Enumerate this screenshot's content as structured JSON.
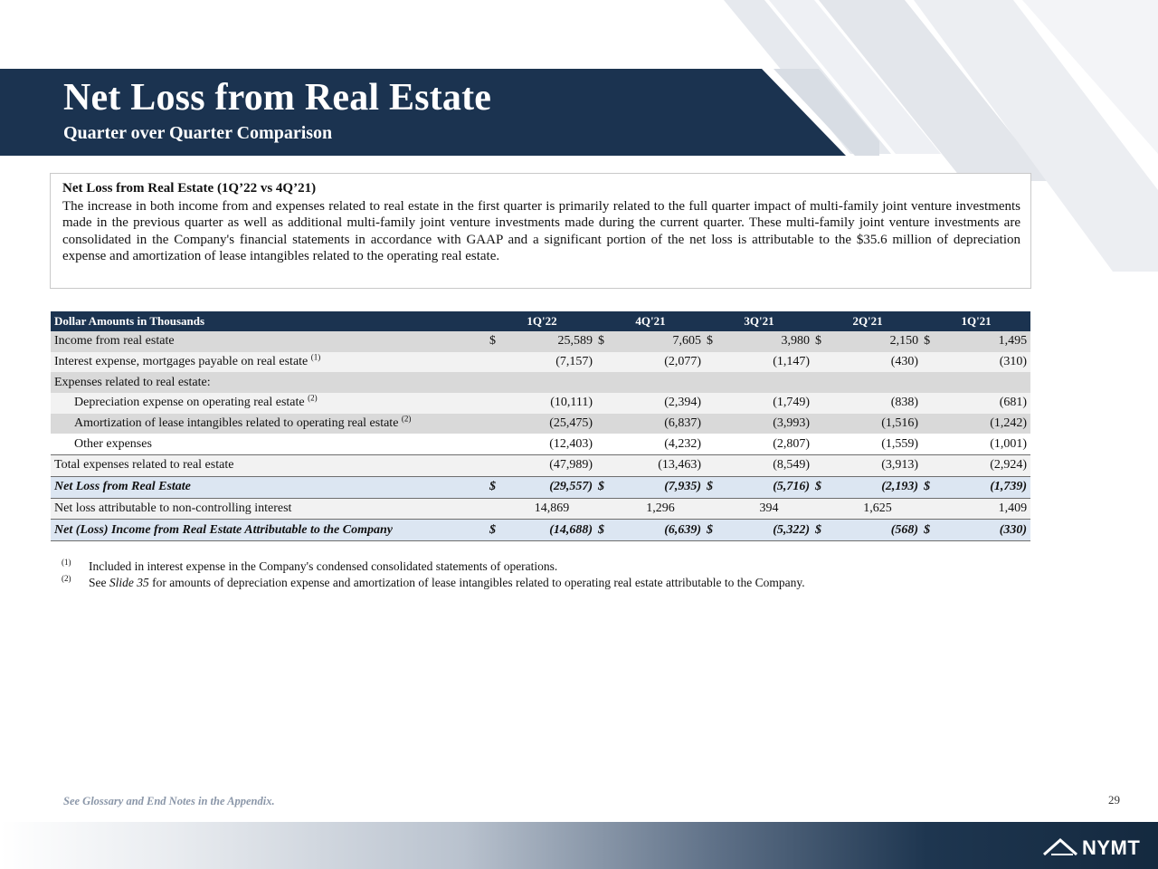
{
  "header": {
    "title": "Net Loss from Real Estate",
    "subtitle": "Quarter over Quarter Comparison"
  },
  "summary": {
    "heading": "Net Loss from Real Estate (1Q’22 vs 4Q’21)",
    "text": "The increase in both income from and expenses related to real estate in the first quarter is primarily related to the full quarter impact of multi-family joint venture investments made in the previous quarter as well as additional multi-family joint venture investments made during the current quarter. These multi-family joint venture investments are consolidated in the Company's financial statements in accordance with GAAP and a significant portion of the net loss is attributable to the $35.6 million of depreciation expense and amortization of lease intangibles related to the operating real estate."
  },
  "table": {
    "header_label": "Dollar Amounts in Thousands",
    "columns": [
      "1Q'22",
      "4Q'21",
      "3Q'21",
      "2Q'21",
      "1Q'21"
    ],
    "rows": [
      {
        "label": "Income from real estate",
        "sup": "",
        "cur": [
          "$",
          "$",
          "$",
          "$",
          "$"
        ],
        "values": [
          "25,589",
          "7,605",
          "3,980",
          "2,150",
          "1,495"
        ]
      },
      {
        "label": "Interest expense, mortgages payable on real estate",
        "sup": "(1)",
        "cur": [
          "",
          "",
          "",
          "",
          ""
        ],
        "values": [
          "(7,157)",
          "(2,077)",
          "(1,147)",
          "(430)",
          "(310)"
        ]
      },
      {
        "label": "Expenses related to real estate:",
        "sup": "",
        "cur": [
          "",
          "",
          "",
          "",
          ""
        ],
        "values": [
          "",
          "",
          "",
          "",
          ""
        ]
      },
      {
        "label": "Depreciation expense on operating real estate",
        "sup": "(2)",
        "cur": [
          "",
          "",
          "",
          "",
          ""
        ],
        "values": [
          "(10,111)",
          "(2,394)",
          "(1,749)",
          "(838)",
          "(681)"
        ]
      },
      {
        "label": "Amortization of lease intangibles related to operating real estate",
        "sup": "(2)",
        "cur": [
          "",
          "",
          "",
          "",
          ""
        ],
        "values": [
          "(25,475)",
          "(6,837)",
          "(3,993)",
          "(1,516)",
          "(1,242)"
        ]
      },
      {
        "label": "Other expenses",
        "sup": "",
        "cur": [
          "",
          "",
          "",
          "",
          ""
        ],
        "values": [
          "(12,403)",
          "(4,232)",
          "(2,807)",
          "(1,559)",
          "(1,001)"
        ]
      },
      {
        "label": "Total expenses related to real estate",
        "sup": "",
        "cur": [
          "",
          "",
          "",
          "",
          ""
        ],
        "values": [
          "(47,989)",
          "(13,463)",
          "(8,549)",
          "(3,913)",
          "(2,924)"
        ]
      },
      {
        "label": "Net Loss from Real Estate",
        "sup": "",
        "cur": [
          "$",
          "$",
          "$",
          "$",
          "$"
        ],
        "values": [
          "(29,557)",
          "(7,935)",
          "(5,716)",
          "(2,193)",
          "(1,739)"
        ]
      },
      {
        "label": "Net loss attributable to non-controlling interest",
        "sup": "",
        "cur": [
          "",
          "",
          "",
          "",
          ""
        ],
        "values": [
          "14,869",
          "1,296",
          "394",
          "1,625",
          "1,409"
        ]
      },
      {
        "label": "Net (Loss) Income from Real Estate Attributable to the Company",
        "sup": "",
        "cur": [
          "$",
          "$",
          "$",
          "$",
          "$"
        ],
        "values": [
          "(14,688)",
          "(6,639)",
          "(5,322)",
          "(568)",
          "(330)"
        ]
      }
    ]
  },
  "footnotes": [
    {
      "mark": "(1)",
      "text": "Included in interest expense in the Company's condensed consolidated statements of operations."
    },
    {
      "mark": "(2)",
      "pre": "See ",
      "link": "Slide 35",
      "post": " for amounts of depreciation expense and amortization of lease intangibles related to operating real estate attributable to the Company."
    }
  ],
  "footer": {
    "note": "See Glossary and End Notes in the Appendix.",
    "page_number": "29",
    "logo_text": "NYMT"
  },
  "colors": {
    "navy": "#1b3350",
    "row_shade": "#d9d9d9",
    "row_light": "#f2f2f2",
    "row_blue": "#dce6f2",
    "stripe": "#e4e7ec"
  }
}
